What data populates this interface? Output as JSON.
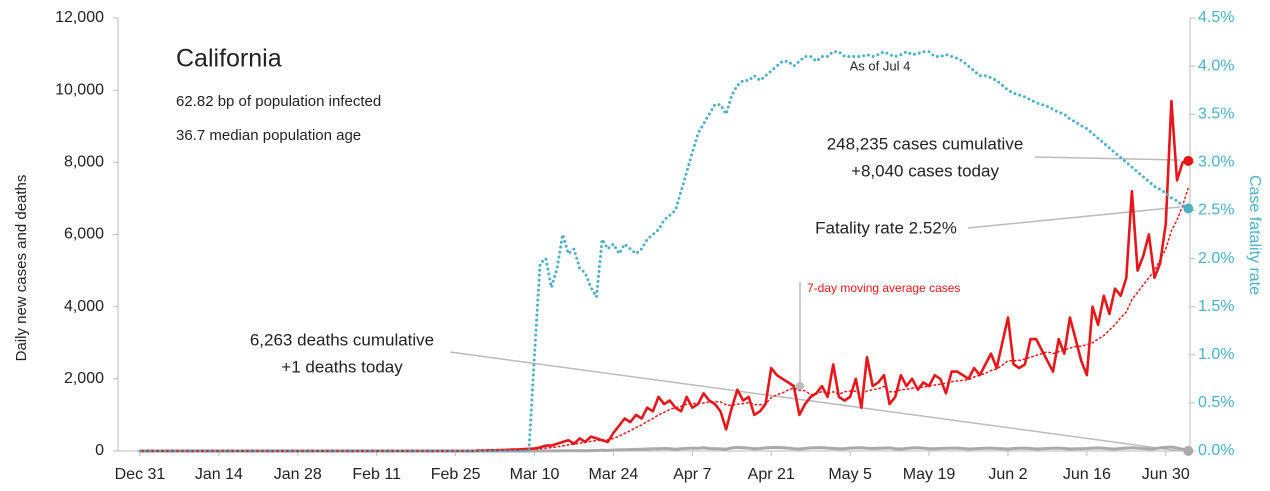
{
  "chart_data": {
    "type": "line",
    "annotations": {
      "title": "California",
      "infected": "62.82 bp of population infected",
      "age": "36.7 median population age",
      "asof": "As of Jul 4",
      "cases_cum": "248,235 cases cumulative",
      "cases_today": "+8,040 cases today",
      "fatality": "Fatality rate 2.52%",
      "avg": "7-day moving average cases",
      "deaths_cum": "6,263 deaths cumulative",
      "deaths_today": "+1 deaths today"
    },
    "ylabel": "Daily new cases and deaths",
    "y2label": "Case fatality rate",
    "xlim": [
      -3.9,
      186.3
    ],
    "xticks": [
      {
        "value": 0,
        "label": "Dec 31"
      },
      {
        "value": 14,
        "label": "Jan 14"
      },
      {
        "value": 28,
        "label": "Jan 28"
      },
      {
        "value": 42,
        "label": "Feb 11"
      },
      {
        "value": 56,
        "label": "Feb 25"
      },
      {
        "value": 70,
        "label": "Mar 10"
      },
      {
        "value": 84,
        "label": "Mar 24"
      },
      {
        "value": 98,
        "label": "Apr 7"
      },
      {
        "value": 112,
        "label": "Apr 21"
      },
      {
        "value": 126,
        "label": "May 5"
      },
      {
        "value": 140,
        "label": "May 19"
      },
      {
        "value": 154,
        "label": "Jun 2"
      },
      {
        "value": 168,
        "label": "Jun 16"
      },
      {
        "value": 182,
        "label": "Jun 30"
      }
    ],
    "ylim": [
      0,
      12000
    ],
    "yticks": [
      0,
      {
        "value": 2000,
        "label": "2,000"
      },
      {
        "value": 4000,
        "label": "4,000"
      },
      {
        "value": 6000,
        "label": "6,000"
      },
      {
        "value": 8000,
        "label": "8,000"
      },
      {
        "value": 10000,
        "label": "10,000"
      },
      {
        "value": 12000,
        "label": "12,000"
      }
    ],
    "y2lim": [
      0,
      4.5
    ],
    "y2ticks": [
      {
        "value": 0,
        "label": "0.0%"
      },
      {
        "value": 0.5,
        "label": "0.5%"
      },
      {
        "value": 1,
        "label": "1.0%"
      },
      {
        "value": 1.5,
        "label": "1.5%"
      },
      {
        "value": 2,
        "label": "2.0%"
      },
      {
        "value": 2.5,
        "label": "2.5%"
      },
      {
        "value": 3,
        "label": "3.0%"
      },
      {
        "value": 3.5,
        "label": "3.5%"
      },
      {
        "value": 4,
        "label": "4.0%"
      },
      {
        "value": 4.5,
        "label": "4.5%"
      }
    ],
    "grid": false,
    "x": [
      0,
      1,
      2,
      3,
      4,
      5,
      6,
      7,
      8,
      9,
      10,
      11,
      12,
      13,
      14,
      15,
      16,
      17,
      18,
      19,
      20,
      21,
      22,
      23,
      24,
      25,
      26,
      27,
      28,
      29,
      30,
      31,
      32,
      33,
      34,
      35,
      36,
      37,
      38,
      39,
      40,
      41,
      42,
      43,
      44,
      45,
      46,
      47,
      48,
      49,
      50,
      51,
      52,
      53,
      54,
      55,
      56,
      57,
      58,
      59,
      60,
      61,
      62,
      63,
      64,
      65,
      66,
      67,
      68,
      69,
      70,
      71,
      72,
      73,
      74,
      75,
      76,
      77,
      78,
      79,
      80,
      81,
      82,
      83,
      84,
      85,
      86,
      87,
      88,
      89,
      90,
      91,
      92,
      93,
      94,
      95,
      96,
      97,
      98,
      99,
      100,
      101,
      102,
      103,
      104,
      105,
      106,
      107,
      108,
      109,
      110,
      111,
      112,
      113,
      114,
      115,
      116,
      117,
      118,
      119,
      120,
      121,
      122,
      123,
      124,
      125,
      126,
      127,
      128,
      129,
      130,
      131,
      132,
      133,
      134,
      135,
      136,
      137,
      138,
      139,
      140,
      141,
      142,
      143,
      144,
      145,
      146,
      147,
      148,
      149,
      150,
      151,
      152,
      153,
      154,
      155,
      156,
      157,
      158,
      159,
      160,
      161,
      162,
      163,
      164,
      165,
      166,
      167,
      168,
      169,
      170,
      171,
      172,
      173,
      174,
      175,
      176,
      177,
      178,
      179,
      180,
      181,
      182,
      183,
      184,
      185,
      186
    ],
    "series": [
      {
        "name": "Deaths",
        "color": "#aaaaaa",
        "style": "solid",
        "width": 3,
        "values": [
          0,
          0,
          0,
          0,
          0,
          0,
          0,
          0,
          0,
          0,
          0,
          0,
          0,
          0,
          0,
          0,
          0,
          0,
          0,
          0,
          0,
          0,
          0,
          0,
          0,
          0,
          0,
          0,
          0,
          0,
          0,
          0,
          0,
          0,
          0,
          0,
          0,
          0,
          0,
          0,
          0,
          0,
          0,
          0,
          0,
          0,
          0,
          0,
          0,
          0,
          0,
          0,
          0,
          0,
          0,
          0,
          0,
          0,
          0,
          0,
          0,
          0,
          0,
          0,
          0,
          0,
          0,
          0,
          0,
          0,
          1,
          2,
          2,
          3,
          4,
          5,
          8,
          5,
          10,
          8,
          12,
          15,
          20,
          18,
          25,
          30,
          35,
          40,
          45,
          50,
          55,
          60,
          60,
          70,
          65,
          50,
          60,
          70,
          80,
          75,
          90,
          70,
          65,
          60,
          50,
          85,
          100,
          90,
          80,
          60,
          70,
          85,
          95,
          100,
          90,
          80,
          60,
          55,
          70,
          85,
          90,
          95,
          80,
          70,
          60,
          65,
          80,
          85,
          90,
          75,
          70,
          75,
          80,
          85,
          60,
          55,
          70,
          85,
          90,
          80,
          65,
          60,
          70,
          75,
          80,
          80,
          70,
          55,
          60,
          70,
          75,
          80,
          70,
          60,
          55,
          70,
          75,
          80,
          70,
          55,
          60,
          70,
          75,
          80,
          70,
          55,
          60,
          65,
          70,
          80,
          85,
          75,
          60,
          55,
          70,
          80,
          90,
          80,
          70,
          55,
          60,
          90,
          100,
          110,
          80,
          50,
          1
        ]
      },
      {
        "name": "7-day moving average cases",
        "color": "#e8161a",
        "style": "dotted",
        "width": 1.5,
        "values": [
          0,
          0,
          0,
          0,
          0,
          0,
          0,
          0,
          0,
          0,
          0,
          0,
          0,
          0,
          0,
          0,
          0,
          0,
          0,
          0,
          0,
          0,
          0,
          0,
          0,
          0,
          0,
          0,
          0,
          0,
          0,
          0,
          0,
          0,
          0,
          0,
          0,
          0,
          0,
          0,
          0,
          0,
          0,
          0,
          0,
          0,
          0,
          0,
          0,
          0,
          0,
          0,
          0,
          0,
          0,
          0,
          0,
          0,
          0,
          0,
          5,
          8,
          12,
          15,
          18,
          22,
          27,
          32,
          38,
          44,
          52,
          65,
          80,
          95,
          115,
          140,
          170,
          190,
          220,
          240,
          270,
          290,
          300,
          310,
          350,
          410,
          490,
          560,
          650,
          720,
          820,
          900,
          1000,
          1070,
          1150,
          1200,
          1240,
          1300,
          1310,
          1320,
          1330,
          1360,
          1370,
          1360,
          1280,
          1260,
          1300,
          1310,
          1340,
          1290,
          1280,
          1300,
          1480,
          1560,
          1610,
          1690,
          1750,
          1680,
          1670,
          1560,
          1580,
          1650,
          1590,
          1640,
          1570,
          1640,
          1660,
          1660,
          1570,
          1660,
          1700,
          1720,
          1790,
          1640,
          1640,
          1700,
          1710,
          1740,
          1760,
          1770,
          1800,
          1830,
          1850,
          1880,
          1920,
          1940,
          1960,
          1980,
          2050,
          2100,
          2150,
          2230,
          2270,
          2380,
          2500,
          2500,
          2510,
          2550,
          2600,
          2650,
          2700,
          2750,
          2700,
          2750,
          2800,
          2850,
          2900,
          2900,
          2950,
          3000,
          3100,
          3200,
          3350,
          3500,
          3700,
          3850,
          4200,
          4400,
          4600,
          4800,
          5000,
          5300,
          5600,
          6100,
          6400,
          6800,
          7300
        ]
      },
      {
        "name": "Cases",
        "color": "#e8161a",
        "style": "solid",
        "width": 2.6,
        "values": [
          0,
          0,
          0,
          0,
          0,
          0,
          0,
          0,
          0,
          0,
          0,
          0,
          0,
          0,
          0,
          0,
          0,
          0,
          0,
          0,
          0,
          0,
          0,
          0,
          0,
          0,
          0,
          0,
          0,
          0,
          0,
          0,
          0,
          0,
          0,
          0,
          0,
          0,
          0,
          0,
          0,
          0,
          0,
          0,
          0,
          0,
          0,
          0,
          0,
          0,
          0,
          0,
          0,
          0,
          0,
          0,
          0,
          0,
          0,
          0,
          10,
          15,
          20,
          20,
          25,
          30,
          40,
          40,
          50,
          60,
          70,
          100,
          150,
          150,
          200,
          250,
          300,
          200,
          350,
          250,
          400,
          350,
          300,
          250,
          500,
          700,
          900,
          800,
          1000,
          900,
          1200,
          1100,
          1500,
          1300,
          1400,
          1200,
          1100,
          1500,
          1200,
          1300,
          1600,
          1400,
          1300,
          1100,
          600,
          1200,
          1700,
          1400,
          1500,
          1000,
          1100,
          1300,
          2300,
          2100,
          2000,
          1900,
          1800,
          1000,
          1300,
          1500,
          1600,
          1800,
          1500,
          2400,
          1500,
          1400,
          1500,
          2000,
          1200,
          2600,
          1800,
          1900,
          2100,
          1300,
          1500,
          2100,
          1800,
          2000,
          1700,
          1900,
          1800,
          2100,
          2000,
          1600,
          2200,
          2200,
          2100,
          2000,
          2300,
          2100,
          2400,
          2700,
          2300,
          3000,
          3700,
          2400,
          2300,
          2400,
          3100,
          3100,
          2800,
          2500,
          2200,
          3100,
          2700,
          3700,
          3100,
          2500,
          2100,
          4000,
          3500,
          4300,
          3800,
          4500,
          4300,
          4800,
          7200,
          5000,
          5400,
          6000,
          4800,
          5200,
          6300,
          9700,
          7500,
          8000,
          8040
        ]
      },
      {
        "name": "Case fatality rate",
        "color": "#4bb2c5",
        "style": "dotted",
        "width": 3,
        "axis": "y2",
        "values": [
          0,
          0,
          0,
          0,
          0,
          0,
          0,
          0,
          0,
          0,
          0,
          0,
          0,
          0,
          0,
          0,
          0,
          0,
          0,
          0,
          0,
          0,
          0,
          0,
          0,
          0,
          0,
          0,
          0,
          0,
          0,
          0,
          0,
          0,
          0,
          0,
          0,
          0,
          0,
          0,
          0,
          0,
          0,
          0,
          0,
          0,
          0,
          0,
          0,
          0,
          0,
          0,
          0,
          0,
          0,
          0,
          0,
          0,
          0,
          0,
          0,
          0,
          0,
          0,
          0,
          0,
          0,
          0,
          0,
          0,
          1,
          1.95,
          2,
          1.7,
          1.9,
          2.25,
          2.05,
          2.1,
          1.9,
          1.85,
          1.7,
          1.6,
          2.2,
          2.1,
          2.15,
          2.05,
          2.15,
          2.1,
          2.05,
          2.1,
          2.2,
          2.25,
          2.3,
          2.4,
          2.45,
          2.5,
          2.7,
          2.9,
          3.1,
          3.3,
          3.4,
          3.5,
          3.6,
          3.6,
          3.5,
          3.7,
          3.8,
          3.85,
          3.85,
          3.9,
          3.85,
          3.9,
          3.95,
          4,
          4.05,
          4.05,
          4,
          4.05,
          4.1,
          4.1,
          4.05,
          4.1,
          4.1,
          4.15,
          4.15,
          4.1,
          4.1,
          4.1,
          4.1,
          4.12,
          4.1,
          4.12,
          4.15,
          4.12,
          4.1,
          4.12,
          4.15,
          4.12,
          4.13,
          4.15,
          4.15,
          4.1,
          4.1,
          4.12,
          4.1,
          4.08,
          4.05,
          4,
          3.95,
          3.9,
          3.9,
          3.88,
          3.85,
          3.8,
          3.75,
          3.72,
          3.7,
          3.68,
          3.65,
          3.62,
          3.6,
          3.58,
          3.55,
          3.52,
          3.5,
          3.45,
          3.42,
          3.38,
          3.35,
          3.3,
          3.25,
          3.2,
          3.15,
          3.1,
          3.05,
          3,
          2.95,
          2.9,
          2.85,
          2.8,
          2.75,
          2.72,
          2.68,
          2.63,
          2.6,
          2.55,
          2.52
        ]
      }
    ]
  }
}
